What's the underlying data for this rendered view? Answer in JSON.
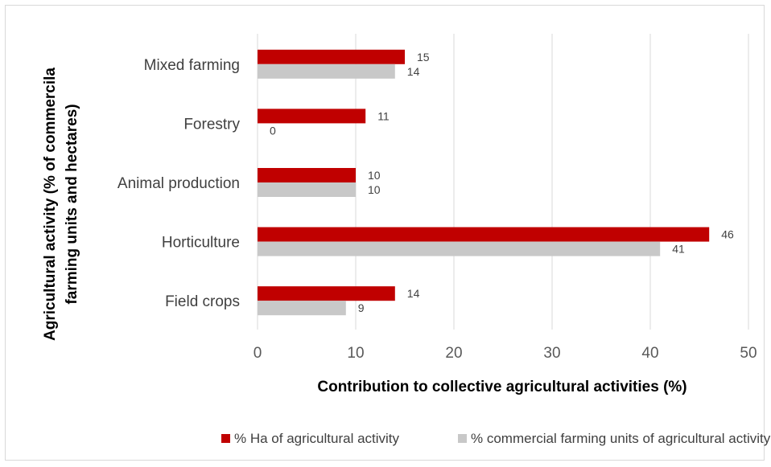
{
  "chart_data": {
    "type": "bar",
    "orientation": "horizontal",
    "categories": [
      "Mixed farming",
      "Forestry",
      "Animal production",
      "Horticulture",
      "Field crops"
    ],
    "series": [
      {
        "name": "% Ha of agricultural activity",
        "color": "#c00000",
        "values": [
          15,
          11,
          10,
          46,
          14
        ]
      },
      {
        "name": "% commercial farming units of agricultural activity",
        "color": "#c8c8c8",
        "values": [
          14,
          0,
          10,
          41,
          9
        ]
      }
    ],
    "xlabel": "Contribution to collective agricultural activities (%)",
    "ylabel": [
      "Agricultural activity (% of commercila",
      "farming units and hectares)"
    ],
    "xlim": [
      0,
      50
    ],
    "xticks": [
      "0",
      "10",
      "20",
      "30",
      "40",
      "50"
    ],
    "grid": "vertical",
    "legend_position": "bottom"
  }
}
